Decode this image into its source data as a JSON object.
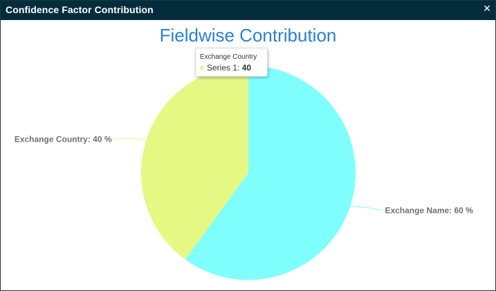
{
  "dialog": {
    "title": "Confidence Factor Contribution",
    "close_glyph": "✕",
    "close_icon": "close-icon",
    "titlebar_color": "#032d3d"
  },
  "chart_data": {
    "type": "pie",
    "title": "Fieldwise Contribution",
    "series_name": "Series 1",
    "categories": [
      "Exchange Country",
      "Exchange Name"
    ],
    "values": [
      40,
      60
    ],
    "unit": "%",
    "colors": [
      "#e5f884",
      "#80ffff"
    ],
    "slice_labels": [
      "Exchange Country: 40 %",
      "Exchange Name: 60 %"
    ],
    "title_color": "#2b7fd0"
  },
  "tooltip": {
    "header": "Exchange Country",
    "series_label": "Series 1: ",
    "value": "40"
  }
}
